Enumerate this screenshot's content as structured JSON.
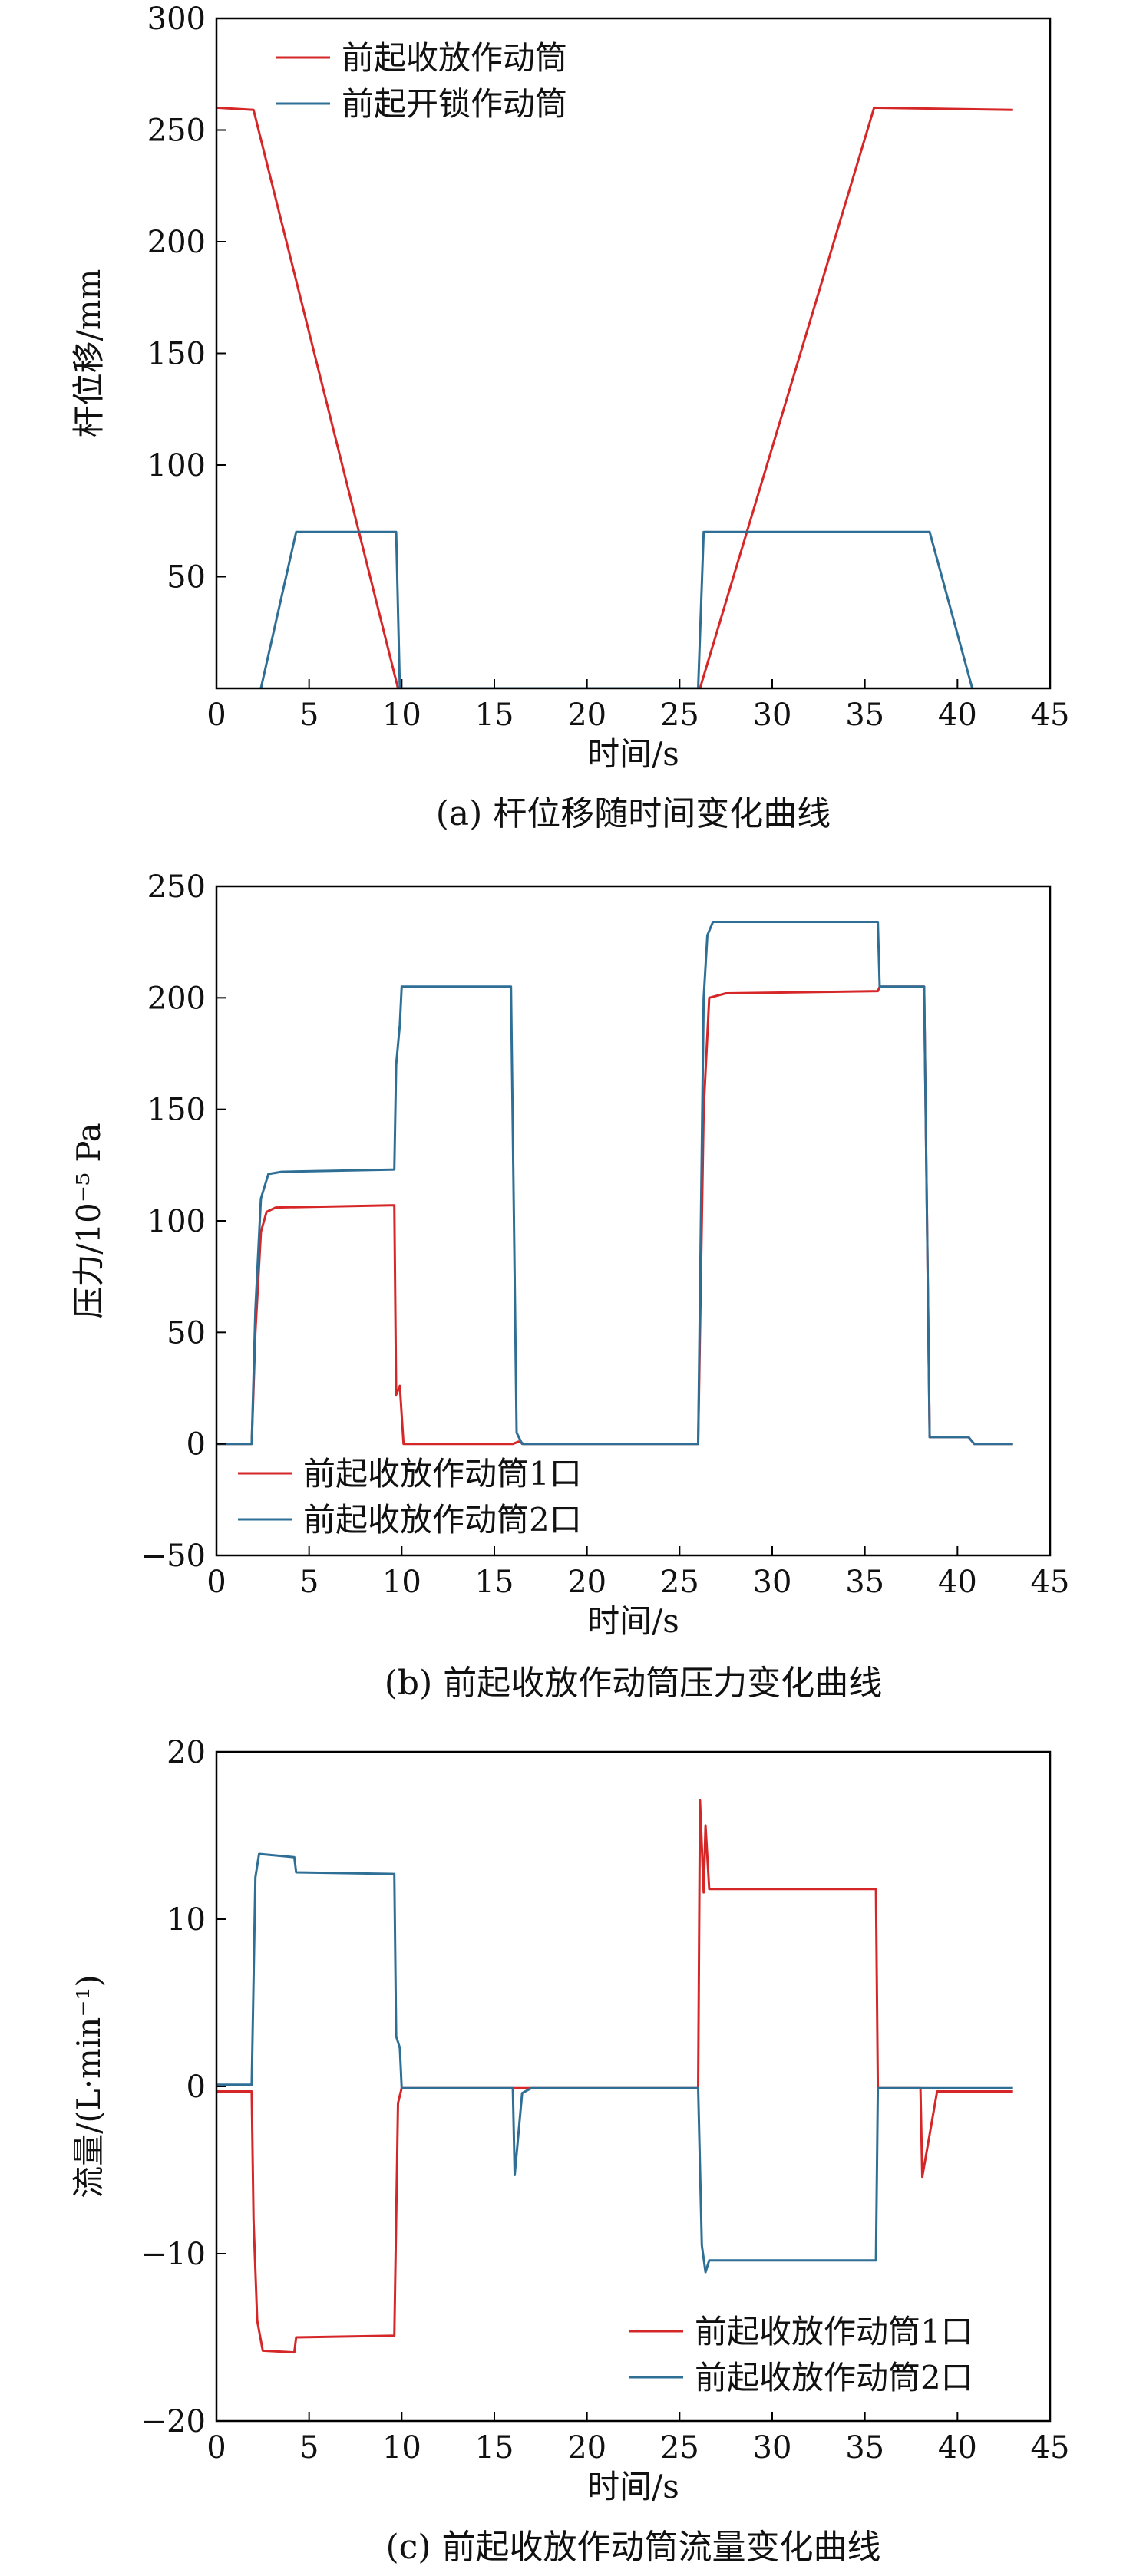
{
  "colors": {
    "red": "#d62728",
    "blue": "#2f6f95",
    "axis": "#000000"
  },
  "chart_data": [
    {
      "type": "line",
      "caption": "(a) 杆位移随时间变化曲线",
      "xlabel": "时间/s",
      "ylabel": "杆位移/mm",
      "xlim": [
        0,
        45
      ],
      "ylim": [
        0,
        300
      ],
      "xticks": [
        0,
        5,
        10,
        15,
        20,
        25,
        30,
        35,
        40,
        45
      ],
      "yticks": [
        50,
        100,
        150,
        200,
        250,
        300
      ],
      "legend_position": "top-left",
      "series": [
        {
          "name": "前起收放作动筒",
          "color": "red",
          "points": [
            [
              0,
              260
            ],
            [
              2,
              259
            ],
            [
              9.8,
              0
            ],
            [
              26.1,
              0
            ],
            [
              35.5,
              260
            ],
            [
              43,
              259
            ]
          ]
        },
        {
          "name": "前起开锁作动筒",
          "color": "blue",
          "points": [
            [
              2.4,
              0
            ],
            [
              4.3,
              70
            ],
            [
              9.7,
              70
            ],
            [
              9.9,
              0
            ],
            [
              26,
              0
            ],
            [
              26.3,
              70
            ],
            [
              38.5,
              70
            ],
            [
              40.8,
              0
            ]
          ]
        }
      ]
    },
    {
      "type": "line",
      "caption": "(b) 前起收放作动筒压力变化曲线",
      "xlabel": "时间/s",
      "ylabel": "压力/10⁻⁵ Pa",
      "xlim": [
        0,
        45
      ],
      "ylim": [
        -50,
        250
      ],
      "xticks": [
        0,
        5,
        10,
        15,
        20,
        25,
        30,
        35,
        40,
        45
      ],
      "yticks": [
        -50,
        0,
        50,
        100,
        150,
        200,
        250
      ],
      "legend_position": "bottom-left",
      "series": [
        {
          "name": "前起收放作动筒1口",
          "color": "red",
          "points": [
            [
              0,
              0
            ],
            [
              1.9,
              0
            ],
            [
              2.1,
              50
            ],
            [
              2.4,
              95
            ],
            [
              2.7,
              104
            ],
            [
              3.2,
              106
            ],
            [
              9.6,
              107
            ],
            [
              9.7,
              22
            ],
            [
              9.9,
              26
            ],
            [
              10.1,
              0
            ],
            [
              16,
              0
            ],
            [
              16.3,
              1
            ],
            [
              16.6,
              0
            ],
            [
              26,
              0
            ],
            [
              26.3,
              150
            ],
            [
              26.6,
              200
            ],
            [
              27.5,
              202
            ],
            [
              35.7,
              203
            ],
            [
              35.8,
              205
            ],
            [
              38.2,
              205
            ],
            [
              38.5,
              3
            ],
            [
              40.6,
              3
            ],
            [
              40.9,
              0
            ],
            [
              43,
              0
            ]
          ]
        },
        {
          "name": "前起收放作动筒2口",
          "color": "blue",
          "points": [
            [
              0,
              0
            ],
            [
              1.9,
              0
            ],
            [
              2.1,
              60
            ],
            [
              2.4,
              110
            ],
            [
              2.8,
              121
            ],
            [
              3.5,
              122
            ],
            [
              9.6,
              123
            ],
            [
              9.7,
              170
            ],
            [
              9.9,
              188
            ],
            [
              10,
              205
            ],
            [
              15.9,
              205
            ],
            [
              16.2,
              5
            ],
            [
              16.5,
              0
            ],
            [
              26,
              0
            ],
            [
              26.3,
              200
            ],
            [
              26.5,
              228
            ],
            [
              26.8,
              234
            ],
            [
              35.7,
              234
            ],
            [
              35.8,
              205
            ],
            [
              38.2,
              205
            ],
            [
              38.5,
              3
            ],
            [
              40.6,
              3
            ],
            [
              40.9,
              0
            ],
            [
              43,
              0
            ]
          ]
        }
      ]
    },
    {
      "type": "line",
      "caption": "(c) 前起收放作动筒流量变化曲线",
      "xlabel": "时间/s",
      "ylabel": "流量/(L·min⁻¹)",
      "xlim": [
        0,
        45
      ],
      "ylim": [
        -20,
        20
      ],
      "xticks": [
        0,
        5,
        10,
        15,
        20,
        25,
        30,
        35,
        40,
        45
      ],
      "yticks": [
        -20,
        -10,
        0,
        10,
        20
      ],
      "legend_position": "bottom-right",
      "series": [
        {
          "name": "前起收放作动筒1口",
          "color": "red",
          "points": [
            [
              0,
              -0.3
            ],
            [
              1.9,
              -0.3
            ],
            [
              2,
              -8
            ],
            [
              2.2,
              -14
            ],
            [
              2.5,
              -15.8
            ],
            [
              4.2,
              -15.9
            ],
            [
              4.3,
              -15
            ],
            [
              9.6,
              -14.9
            ],
            [
              9.8,
              -1
            ],
            [
              10,
              -0.1
            ],
            [
              26,
              -0.1
            ],
            [
              26.1,
              17.1
            ],
            [
              26.3,
              11.6
            ],
            [
              26.4,
              15.6
            ],
            [
              26.6,
              11.8
            ],
            [
              35.6,
              11.8
            ],
            [
              35.7,
              -0.1
            ],
            [
              38,
              -0.1
            ],
            [
              38.1,
              -5.4
            ],
            [
              38.9,
              -0.3
            ],
            [
              43,
              -0.3
            ]
          ]
        },
        {
          "name": "前起收放作动筒2口",
          "color": "blue",
          "points": [
            [
              0,
              0.1
            ],
            [
              1.9,
              0.1
            ],
            [
              2.1,
              12.5
            ],
            [
              2.3,
              13.9
            ],
            [
              4.2,
              13.7
            ],
            [
              4.3,
              12.8
            ],
            [
              9.6,
              12.7
            ],
            [
              9.7,
              3
            ],
            [
              9.9,
              2.3
            ],
            [
              10,
              -0.1
            ],
            [
              16,
              -0.1
            ],
            [
              16.1,
              -5.3
            ],
            [
              16.5,
              -0.4
            ],
            [
              17,
              -0.1
            ],
            [
              26,
              -0.1
            ],
            [
              26.2,
              -9.5
            ],
            [
              26.4,
              -11.1
            ],
            [
              26.6,
              -10.4
            ],
            [
              35.6,
              -10.4
            ],
            [
              35.7,
              -0.1
            ],
            [
              43,
              -0.1
            ]
          ]
        }
      ]
    }
  ]
}
